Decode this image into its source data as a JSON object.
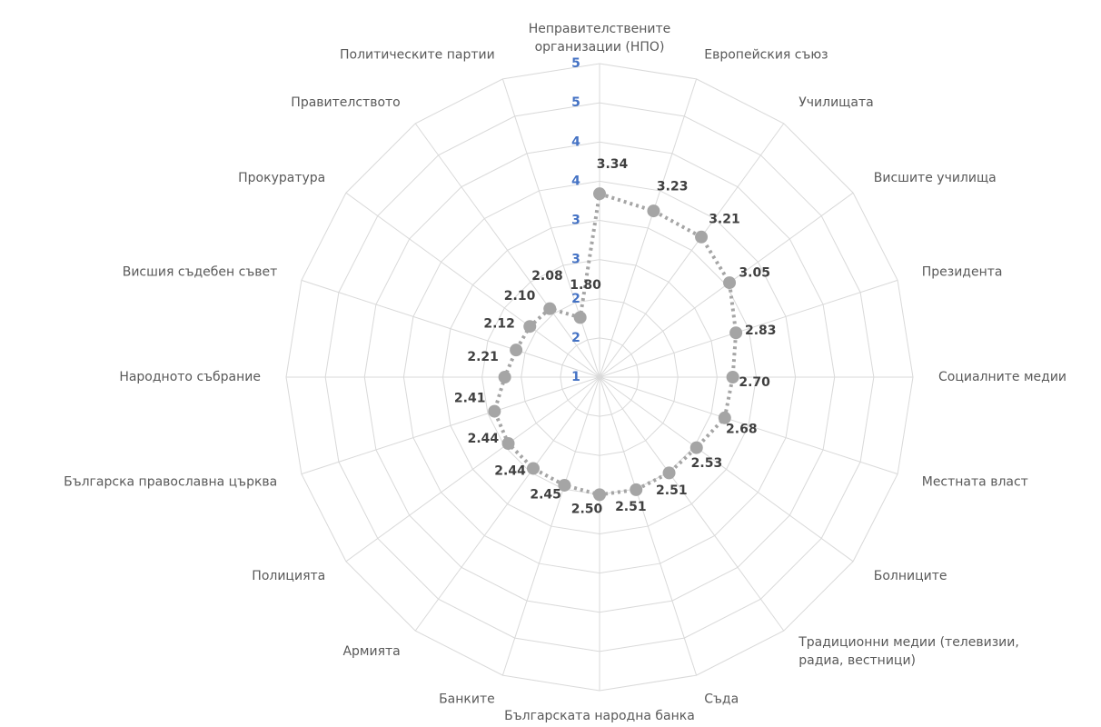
{
  "chart_data": {
    "type": "radar",
    "categories": [
      "Неправителствените\nорганизации (НПО)",
      "Европейския съюз",
      "Училищата",
      "Висшите училища",
      "Президента",
      "Социалните медии",
      "Местната власт",
      "Болниците",
      "Традиционни медии (телевизии,\nрадиа, вестници)",
      "Съда",
      "Българската народна банка",
      "Банките",
      "Армията",
      "Полицията",
      "Българска православна църква",
      "Народното събрание",
      "Висшия съдебен съвет",
      "Прокуратура",
      "Правителството",
      "Политическите партии"
    ],
    "series": [
      {
        "color": "#a5a5a5",
        "values": [
          3.34,
          3.23,
          3.21,
          3.05,
          2.83,
          2.7,
          2.68,
          2.53,
          2.51,
          2.51,
          2.5,
          2.45,
          2.44,
          2.44,
          2.41,
          2.21,
          2.12,
          2.1,
          2.08,
          1.8
        ],
        "value_labels": [
          "3.34",
          "3.23",
          "3.21",
          "3.05",
          "2.83",
          "2.70",
          "2.68",
          "2.53",
          "2.51",
          "2.51",
          "2.50",
          "2.45",
          "2.44",
          "2.44",
          "2.41",
          "2.21",
          "2.12",
          "2.10",
          "2.08",
          "1.80"
        ]
      }
    ],
    "ylim": [
      1,
      5
    ],
    "yticks": [
      1,
      {
        "value": 1.5,
        "label": "2"
      },
      2,
      {
        "value": 2.5,
        "label": "3"
      },
      3,
      {
        "value": 3.5,
        "label": "4"
      },
      4,
      {
        "value": 4.5,
        "label": "5"
      },
      5
    ],
    "grid": true
  }
}
